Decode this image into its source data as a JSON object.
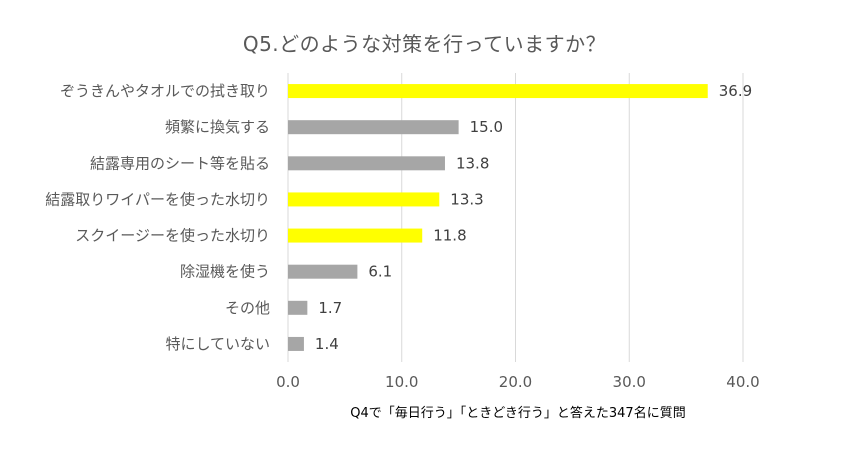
{
  "chart_data": {
    "type": "bar",
    "orientation": "horizontal",
    "title": "Q5.どのような対策を行っていますか？",
    "note": "Q4で「毎日行う」「ときどき行う」と答えた347名に質問",
    "categories": [
      "ぞうきんやタオルでの拭き取り",
      "頻繁に換気する",
      "結露専用のシート等を貼る",
      "結露取りワイパーを使った水切り",
      "スクイージーを使った水切り",
      "除湿機を使う",
      "その他",
      "特にしていない"
    ],
    "values": [
      36.9,
      15.0,
      13.8,
      13.3,
      11.8,
      6.1,
      1.7,
      1.4
    ],
    "value_labels": [
      "36.9",
      "15.0",
      "13.8",
      "13.3",
      "11.8",
      "6.1",
      "1.7",
      "1.4"
    ],
    "bar_colors": [
      "#ffff00",
      "#a6a6a6",
      "#a6a6a6",
      "#ffff00",
      "#ffff00",
      "#a6a6a6",
      "#a6a6a6",
      "#a6a6a6"
    ],
    "xlim": [
      0,
      40
    ],
    "xticks": [
      0,
      10,
      20,
      30,
      40
    ],
    "xtick_labels": [
      "0.0",
      "10.0",
      "20.0",
      "30.0",
      "40.0"
    ],
    "grid": true,
    "gridline_color": "#d9d9d9",
    "legend": "none"
  }
}
